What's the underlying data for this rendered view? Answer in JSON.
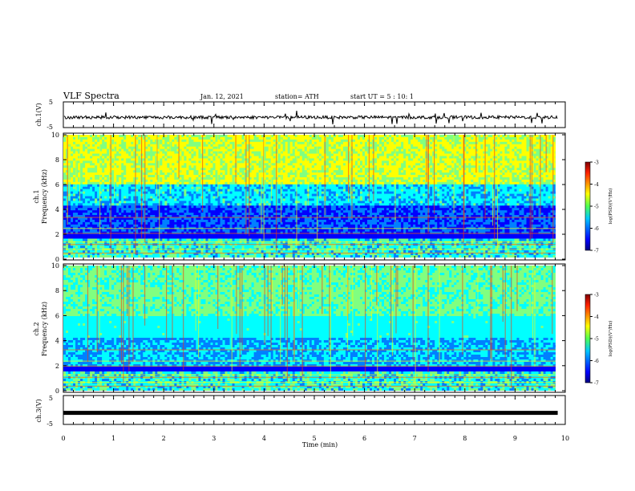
{
  "header": {
    "title": "VLF Spectra",
    "date": "Jan. 12, 2021",
    "station": "station= ATH",
    "start": "start UT = 5 : 10: 1"
  },
  "chart_data": [
    {
      "type": "line",
      "panel": "ch1-waveform",
      "ylabel": "ch.1(V)",
      "ylim": [
        -5,
        5
      ],
      "yticks": [
        "5",
        "-5"
      ],
      "xlim": [
        0,
        10
      ],
      "notes": "broadband VLF waveform, mostly near -1 V with spikes"
    },
    {
      "type": "heatmap",
      "panel": "ch1-spectrogram",
      "ylabel": "ch.1\nFrequency (kHz)",
      "ylim": [
        0,
        10
      ],
      "yticks": [
        "0",
        "2",
        "4",
        "6",
        "8",
        "10"
      ],
      "xlim": [
        0,
        9.85
      ],
      "colorbar": {
        "label": "log(PSD)(V²/Hz)",
        "ticks": [
          "-3",
          "-4",
          "-5",
          "-6",
          "-7"
        ],
        "range": [
          -7,
          -3
        ]
      }
    },
    {
      "type": "heatmap",
      "panel": "ch2-spectrogram",
      "ylabel": "ch.2\nFrequency (kHz)",
      "ylim": [
        0,
        10
      ],
      "yticks": [
        "0",
        "2",
        "4",
        "6",
        "8",
        "10"
      ],
      "xlim": [
        0,
        9.85
      ],
      "colorbar": {
        "label": "log(PSD)(V²/Hz)",
        "ticks": [
          "-3",
          "-4",
          "-5",
          "-6",
          "-7"
        ],
        "range": [
          -7,
          -3
        ]
      }
    },
    {
      "type": "line",
      "panel": "ch3-waveform",
      "ylabel": "ch.3(V)",
      "ylim": [
        -5,
        5
      ],
      "yticks": [
        "5",
        "-5"
      ],
      "xlim": [
        0,
        10
      ],
      "notes": "flat signal near -1 V"
    }
  ],
  "xaxis": {
    "label": "Time (min)",
    "ticks": [
      "0",
      "1",
      "2",
      "3",
      "4",
      "5",
      "6",
      "7",
      "8",
      "9",
      "10"
    ],
    "range": [
      0,
      10
    ]
  },
  "colors": {
    "colormap": [
      "#00007f",
      "#0000ff",
      "#0080ff",
      "#00ffff",
      "#80ff80",
      "#ffff00",
      "#ff8000",
      "#ff0000",
      "#7f0000"
    ]
  }
}
